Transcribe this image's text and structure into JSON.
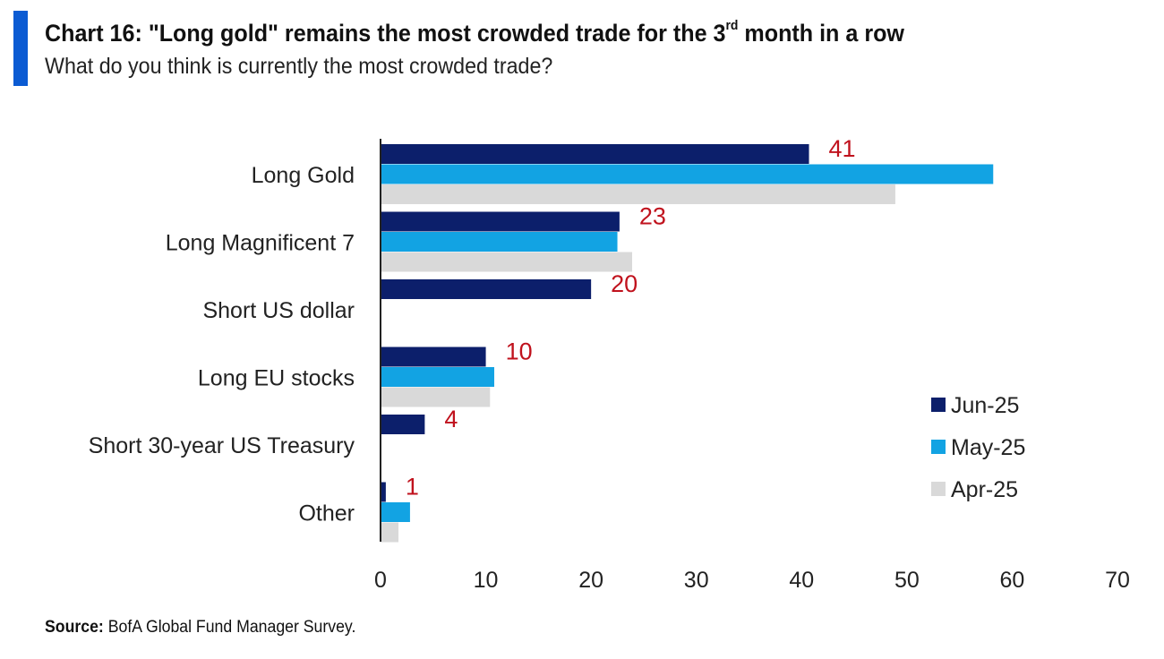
{
  "header": {
    "title_main": "Chart 16: \"Long gold\" remains the most crowded trade for the 3",
    "title_sup": "rd",
    "title_end": " month in a row",
    "subtitle": "What do you think is currently the most crowded trade?"
  },
  "footer": {
    "source_label": "Source:",
    "source_text": " BofA Global Fund Manager Survey."
  },
  "colors": {
    "accent": "#0b5bd3",
    "jun": "#0c1f6b",
    "may": "#12a3e3",
    "apr": "#d9d9d9",
    "label_red": "#c0121d"
  },
  "chart_data": {
    "type": "bar",
    "orientation": "horizontal",
    "categories": [
      "Long Gold",
      "Long Magnificent 7",
      "Short US dollar",
      "Long EU stocks",
      "Short 30-year US Treasury",
      "Other"
    ],
    "series": [
      {
        "name": "Jun-25",
        "values": [
          40.7,
          22.7,
          20,
          10,
          4.2,
          0.5
        ],
        "data_labels": [
          "41",
          "23",
          "20",
          "10",
          "4",
          "1"
        ]
      },
      {
        "name": "May-25",
        "values": [
          58.2,
          22.5,
          0,
          10.8,
          0,
          2.8
        ]
      },
      {
        "name": "Apr-25",
        "values": [
          48.9,
          23.9,
          0,
          10.4,
          0,
          1.7
        ]
      }
    ],
    "xlim": [
      0,
      70
    ],
    "xticks": [
      0,
      10,
      20,
      30,
      40,
      50,
      60,
      70
    ],
    "grid": false,
    "legend_position": "bottom-right"
  }
}
